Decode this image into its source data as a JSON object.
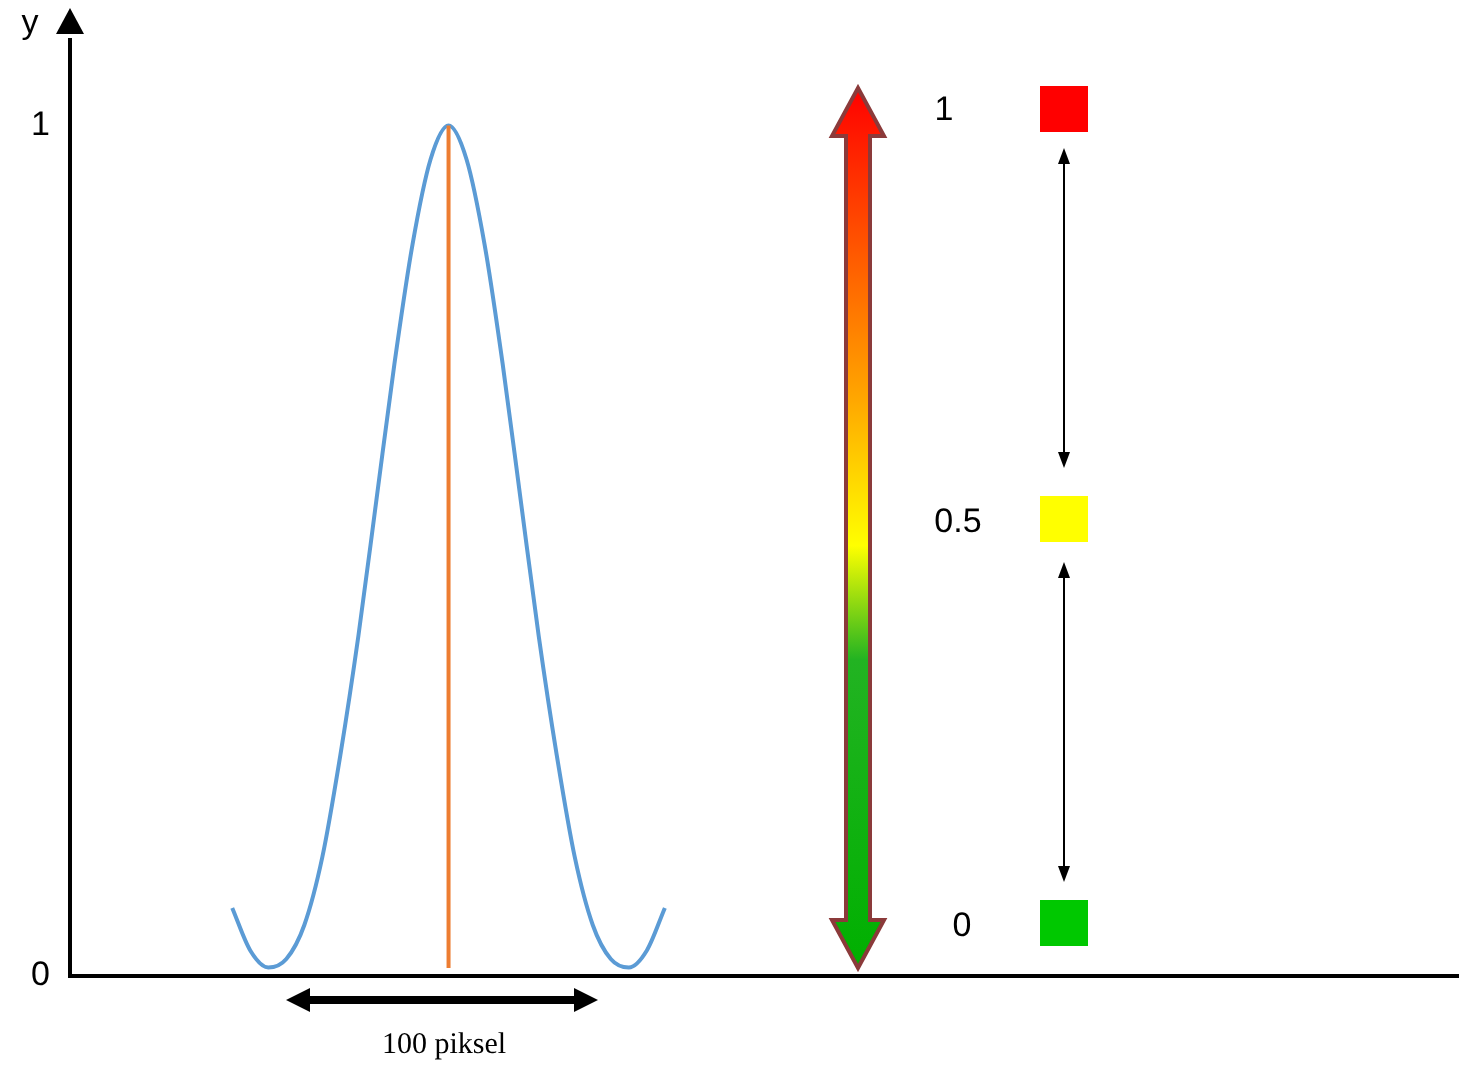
{
  "chart_data": {
    "type": "line",
    "ylabel": "y",
    "categories": [
      null,
      null,
      null,
      null,
      null,
      null,
      null,
      null,
      null,
      null,
      null,
      null,
      null,
      null,
      null,
      null,
      null,
      null,
      null,
      null,
      null,
      null,
      null,
      null,
      null,
      null,
      null,
      null,
      null,
      null,
      null,
      null,
      null,
      null,
      null,
      null,
      null,
      null,
      null,
      null,
      null,
      null,
      null,
      null,
      null,
      null,
      null,
      null,
      null,
      null,
      null,
      null,
      null,
      null,
      null,
      null,
      null,
      null,
      null,
      null,
      null,
      null,
      null,
      null,
      null,
      null,
      null,
      null,
      null,
      null,
      null,
      null,
      null,
      null,
      null,
      null,
      null,
      null
    ],
    "series": [
      {
        "color": "#5b9bd5",
        "values": [
          null,
          null,
          null,
          null,
          null,
          null,
          null,
          null,
          null,
          0.08,
          0.03,
          0.01,
          0.02,
          0.06,
          0.14,
          0.26,
          0.4,
          0.56,
          0.72,
          0.86,
          0.96,
          1,
          0.96,
          0.86,
          0.72,
          0.56,
          0.4,
          0.26,
          0.14,
          0.06,
          0.02,
          0.01,
          0.03,
          0.08,
          null,
          null,
          null,
          null,
          null,
          null,
          null,
          null,
          null,
          null,
          null,
          null,
          null,
          null,
          null,
          null,
          null,
          null,
          null,
          null,
          null,
          null,
          null,
          null,
          null,
          null,
          null,
          null,
          null,
          null,
          null,
          null,
          null,
          null,
          null,
          null,
          null,
          null,
          null,
          null,
          null,
          null,
          null,
          null
        ]
      }
    ],
    "ylim": [
      0,
      1.1
    ],
    "yticks": [
      0,
      1
    ],
    "tick_labels": "y",
    "grid": false,
    "legend": false,
    "marker": "none",
    "line_style": "solid",
    "annotations": [
      "100 piksel",
      "1",
      "0.5",
      "0"
    ]
  }
}
